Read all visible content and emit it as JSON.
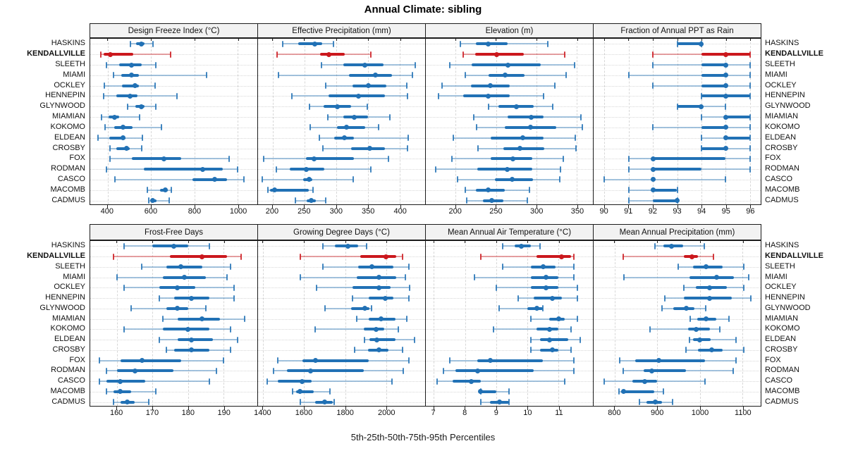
{
  "title": "Annual Climate: sibling",
  "footer": "5th-25th-50th-75th-95th Percentiles",
  "percentiles": [
    "5th",
    "25th",
    "50th",
    "75th",
    "95th"
  ],
  "highlight_series": "KENDALLVILLE",
  "colors": {
    "series": "#2171b5",
    "series_light": "rgba(33,113,181,0.40)",
    "series_cap": "rgba(33,113,181,0.85)",
    "highlight": "#cb181d",
    "highlight_light": "rgba(203,24,29,0.40)",
    "highlight_cap": "rgba(203,24,29,0.85)",
    "grid": "#d7d7d7",
    "strip_bg": "#f2f2f2",
    "border": "#1c1c1c"
  },
  "series": [
    "HASKINS",
    "KENDALLVILLE",
    "SLEETH",
    "MIAMI",
    "OCKLEY",
    "HENNEPIN",
    "GLYNWOOD",
    "MIAMIAN",
    "KOKOMO",
    "ELDEAN",
    "CROSBY",
    "FOX",
    "RODMAN",
    "CASCO",
    "MACOMB",
    "CADMUS"
  ],
  "chart_data": [
    {
      "type": "percentile-dotplot",
      "title": "Design Freeze Index (°C)",
      "xlim": [
        320,
        1090
      ],
      "ticks": [
        400,
        600,
        800,
        1000
      ],
      "values": [
        [
          505,
          530,
          555,
          570,
          610
        ],
        [
          370,
          381,
          413,
          517,
          690
        ],
        [
          395,
          452,
          511,
          557,
          621
        ],
        [
          427,
          464,
          511,
          543,
          857
        ],
        [
          386,
          466,
          527,
          545,
          620
        ],
        [
          381,
          440,
          505,
          538,
          718
        ],
        [
          493,
          527,
          554,
          570,
          623
        ],
        [
          373,
          405,
          432,
          452,
          546
        ],
        [
          389,
          431,
          470,
          515,
          648
        ],
        [
          355,
          408,
          470,
          483,
          562
        ],
        [
          411,
          440,
          488,
          502,
          557
        ],
        [
          410,
          512,
          658,
          740,
          960
        ],
        [
          394,
          566,
          837,
          930,
          999
        ],
        [
          434,
          792,
          892,
          950,
          1028
        ],
        [
          584,
          643,
          666,
          677,
          694
        ],
        [
          589,
          598,
          609,
          624,
          683
        ]
      ]
    },
    {
      "type": "percentile-dotplot",
      "title": "Effective Precipitation (mm)",
      "xlim": [
        177,
        440
      ],
      "ticks": [
        200,
        250,
        300,
        350,
        400
      ],
      "values": [
        [
          216,
          240,
          266,
          278,
          296
        ],
        [
          207,
          275,
          289,
          314,
          354
        ],
        [
          277,
          311,
          345,
          374,
          424
        ],
        [
          209,
          320,
          362,
          388,
          420
        ],
        [
          283,
          326,
          351,
          379,
          411
        ],
        [
          230,
          288,
          335,
          377,
          412
        ],
        [
          258,
          280,
          302,
          324,
          349
        ],
        [
          287,
          311,
          329,
          350,
          385
        ],
        [
          259,
          301,
          316,
          346,
          367
        ],
        [
          273,
          297,
          313,
          328,
          413
        ],
        [
          279,
          324,
          353,
          377,
          412
        ],
        [
          186,
          252,
          265,
          328,
          382
        ],
        [
          206,
          227,
          253,
          281,
          355
        ],
        [
          184,
          248,
          257,
          262,
          327
        ],
        [
          193,
          196,
          203,
          257,
          264
        ],
        [
          236,
          254,
          261,
          268,
          283
        ]
      ]
    },
    {
      "type": "percentile-dotplot",
      "title": "Elevation (m)",
      "xlim": [
        163,
        370
      ],
      "ticks": [
        200,
        250,
        300,
        350
      ],
      "values": [
        [
          206,
          225,
          240,
          264,
          314
        ],
        [
          209,
          224,
          251,
          284,
          335
        ],
        [
          193,
          220,
          265,
          305,
          347
        ],
        [
          212,
          241,
          261,
          285,
          337
        ],
        [
          183,
          219,
          243,
          267,
          323
        ],
        [
          179,
          209,
          240,
          267,
          309
        ],
        [
          241,
          253,
          275,
          297,
          320
        ],
        [
          222,
          264,
          294,
          309,
          355
        ],
        [
          226,
          261,
          293,
          325,
          357
        ],
        [
          197,
          243,
          283,
          309,
          348
        ],
        [
          228,
          259,
          280,
          310,
          349
        ],
        [
          195,
          243,
          271,
          295,
          333
        ],
        [
          175,
          227,
          264,
          295,
          330
        ],
        [
          202,
          249,
          270,
          296,
          329
        ],
        [
          212,
          225,
          240,
          261,
          291
        ],
        [
          214,
          234,
          245,
          259,
          289
        ]
      ]
    },
    {
      "type": "percentile-dotplot",
      "title": "Fraction of Annual PPT as Rain",
      "xlim": [
        89.55,
        96.45
      ],
      "ticks": [
        90,
        91,
        92,
        93,
        94,
        95,
        96
      ],
      "values": [
        [
          93,
          93,
          94,
          94,
          94
        ],
        [
          92,
          94,
          95,
          96,
          96
        ],
        [
          92,
          94,
          95,
          95,
          96
        ],
        [
          91,
          94,
          95,
          95,
          96
        ],
        [
          92,
          94,
          95,
          95,
          96
        ],
        [
          94,
          94,
          95,
          96,
          96
        ],
        [
          93,
          93,
          94,
          94,
          95
        ],
        [
          94,
          95,
          95,
          96,
          96
        ],
        [
          92,
          94,
          95,
          95,
          96
        ],
        [
          94,
          95,
          95,
          96,
          96
        ],
        [
          94,
          94,
          95,
          95,
          96
        ],
        [
          91,
          92,
          92,
          95,
          96
        ],
        [
          91,
          92,
          92,
          94,
          96
        ],
        [
          90,
          92,
          92,
          92,
          95
        ],
        [
          91,
          92,
          92,
          93,
          93
        ],
        [
          91,
          92,
          93,
          93,
          93
        ]
      ]
    },
    {
      "type": "percentile-dotplot",
      "title": "Frost-Free Days",
      "xlim": [
        152.5,
        199.5
      ],
      "ticks": [
        160,
        170,
        180,
        190
      ],
      "values": [
        [
          162,
          170,
          176,
          180,
          186
        ],
        [
          159,
          175,
          184,
          191,
          195
        ],
        [
          167,
          174,
          178,
          184,
          192
        ],
        [
          160,
          173,
          179,
          185,
          191
        ],
        [
          162,
          172,
          177,
          182,
          193
        ],
        [
          172,
          176,
          181,
          186,
          193
        ],
        [
          164,
          174,
          177,
          180,
          185
        ],
        [
          173,
          177,
          184,
          189,
          196
        ],
        [
          162,
          173,
          180,
          186,
          192
        ],
        [
          172,
          177,
          181,
          187,
          194
        ],
        [
          174,
          176,
          181,
          186,
          192
        ],
        [
          155,
          161,
          167,
          178,
          190
        ],
        [
          157,
          160,
          165,
          176,
          188
        ],
        [
          155,
          157,
          161,
          168,
          186
        ],
        [
          157,
          159,
          161,
          164,
          171
        ],
        [
          159,
          161,
          163,
          165,
          169
        ]
      ]
    },
    {
      "type": "percentile-dotplot",
      "title": "Growing Degree Days (°C)",
      "xlim": [
        1375,
        2190
      ],
      "ticks": [
        1400,
        1600,
        1800,
        2000
      ],
      "values": [
        [
          1690,
          1750,
          1815,
          1865,
          1905
        ],
        [
          1580,
          1875,
          2000,
          2050,
          2080
        ],
        [
          1690,
          1865,
          1930,
          2035,
          2110
        ],
        [
          1580,
          1855,
          1965,
          2050,
          2095
        ],
        [
          1660,
          1835,
          1965,
          2020,
          2115
        ],
        [
          1835,
          1915,
          1995,
          2035,
          2110
        ],
        [
          1700,
          1830,
          1895,
          1920,
          1930
        ],
        [
          1855,
          1915,
          1975,
          2045,
          2100
        ],
        [
          1655,
          1890,
          1950,
          1990,
          2060
        ],
        [
          1895,
          1920,
          1955,
          2045,
          2140
        ],
        [
          1845,
          1910,
          1965,
          2010,
          2080
        ],
        [
          1470,
          1590,
          1655,
          1915,
          2110
        ],
        [
          1450,
          1515,
          1630,
          1890,
          2085
        ],
        [
          1420,
          1470,
          1590,
          1635,
          2030
        ],
        [
          1545,
          1560,
          1580,
          1645,
          1725
        ],
        [
          1580,
          1655,
          1700,
          1740,
          1745
        ]
      ]
    },
    {
      "type": "percentile-dotplot",
      "title": "Mean Annual Air Temperature (°C)",
      "xlim": [
        6.74,
        12.1
      ],
      "ticks": [
        7,
        8,
        9,
        10,
        11
      ],
      "values": [
        [
          9.2,
          9.6,
          9.8,
          10.1,
          10.4
        ],
        [
          8.5,
          10.3,
          11.1,
          11.4,
          11.5
        ],
        [
          9.2,
          10.1,
          10.5,
          10.9,
          11.5
        ],
        [
          8.3,
          10.1,
          10.6,
          11.0,
          11.5
        ],
        [
          9.0,
          10.1,
          10.6,
          11.0,
          11.6
        ],
        [
          9.7,
          10.2,
          10.8,
          11.1,
          11.6
        ],
        [
          9.1,
          10.0,
          10.3,
          10.5,
          10.5
        ],
        [
          10.1,
          10.7,
          11.0,
          11.2,
          11.6
        ],
        [
          8.9,
          10.3,
          10.7,
          11.0,
          11.4
        ],
        [
          10.1,
          10.4,
          10.7,
          11.3,
          11.7
        ],
        [
          10.1,
          10.4,
          10.8,
          11.0,
          11.4
        ],
        [
          7.5,
          8.4,
          8.8,
          10.5,
          11.5
        ],
        [
          7.3,
          7.7,
          8.4,
          10.2,
          11.5
        ],
        [
          7.1,
          7.6,
          8.2,
          8.5,
          11.2
        ],
        [
          8.5,
          8.5,
          8.5,
          9.0,
          9.4
        ],
        [
          8.5,
          8.8,
          9.1,
          9.4,
          9.4
        ]
      ]
    },
    {
      "type": "percentile-dotplot",
      "title": "Mean Annual Precipitation (mm)",
      "xlim": [
        750,
        1143
      ],
      "ticks": [
        800,
        900,
        1000,
        1100
      ],
      "values": [
        [
          895,
          914,
          933,
          961,
          1010
        ],
        [
          820,
          963,
          981,
          996,
          1032
        ],
        [
          949,
          984,
          1015,
          1054,
          1104
        ],
        [
          822,
          976,
          1039,
          1080,
          1114
        ],
        [
          963,
          990,
          1023,
          1064,
          1104
        ],
        [
          918,
          962,
          1023,
          1075,
          1120
        ],
        [
          911,
          937,
          968,
          987,
          1013
        ],
        [
          977,
          994,
          1014,
          1038,
          1069
        ],
        [
          883,
          973,
          992,
          1023,
          1046
        ],
        [
          976,
          984,
          1000,
          1025,
          1085
        ],
        [
          968,
          996,
          1028,
          1054,
          1104
        ],
        [
          812,
          848,
          903,
          1012,
          1085
        ],
        [
          820,
          867,
          887,
          968,
          1078
        ],
        [
          775,
          841,
          871,
          899,
          1012
        ],
        [
          810,
          814,
          820,
          892,
          914
        ],
        [
          858,
          875,
          895,
          911,
          935
        ]
      ]
    }
  ]
}
